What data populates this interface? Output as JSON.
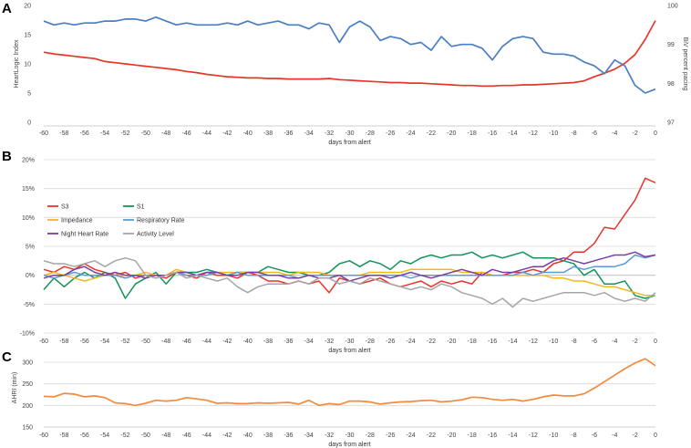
{
  "chart_data": [
    {
      "type": "line",
      "panel": "A",
      "x": [
        -60,
        -59,
        -58,
        -57,
        -56,
        -55,
        -54,
        -53,
        -52,
        -51,
        -50,
        -49,
        -48,
        -47,
        -46,
        -45,
        -44,
        -43,
        -42,
        -41,
        -40,
        -39,
        -38,
        -37,
        -36,
        -35,
        -34,
        -33,
        -32,
        -31,
        -30,
        -29,
        -28,
        -27,
        -26,
        -25,
        -24,
        -23,
        -22,
        -21,
        -20,
        -19,
        -18,
        -17,
        -16,
        -15,
        -14,
        -13,
        -12,
        -11,
        -10,
        -9,
        -8,
        -7,
        -6,
        -5,
        -4,
        -3,
        -2,
        -1,
        0
      ],
      "xticks": [
        -60,
        -58,
        -56,
        -54,
        -52,
        -50,
        -48,
        -46,
        -44,
        -42,
        -40,
        -38,
        -36,
        -34,
        -32,
        -30,
        -28,
        -26,
        -24,
        -22,
        -20,
        -18,
        -16,
        -14,
        -12,
        -10,
        -8,
        -6,
        -4,
        -2,
        0
      ],
      "xlabel": "days from alert",
      "ylabel_left": "HeartLogic Index",
      "ylabel_right": "BiV percent pacing",
      "ylim_left": [
        0,
        20
      ],
      "yticks_left": [
        "0",
        "5",
        "10",
        "15",
        "20"
      ],
      "ylim_right": [
        97,
        100
      ],
      "yticks_right": [
        "97",
        "98",
        "99",
        "100"
      ],
      "series": [
        {
          "name": "HeartLogic Index",
          "axis": "left",
          "color": "#e8352b",
          "values": [
            12.0,
            11.7,
            11.5,
            11.3,
            11.1,
            10.9,
            10.4,
            10.2,
            10.0,
            9.8,
            9.6,
            9.4,
            9.2,
            9.0,
            8.7,
            8.5,
            8.2,
            8.0,
            7.8,
            7.7,
            7.6,
            7.6,
            7.5,
            7.5,
            7.4,
            7.4,
            7.4,
            7.4,
            7.5,
            7.3,
            7.2,
            7.1,
            7.0,
            6.9,
            6.8,
            6.8,
            6.7,
            6.7,
            6.6,
            6.5,
            6.4,
            6.3,
            6.3,
            6.2,
            6.2,
            6.3,
            6.3,
            6.4,
            6.4,
            6.5,
            6.6,
            6.7,
            6.8,
            7.1,
            7.8,
            8.4,
            9.1,
            10.1,
            11.6,
            14.2,
            17.4
          ]
        },
        {
          "name": "BiV percent pacing",
          "axis": "right",
          "color": "#4a7ec4",
          "values": [
            99.6,
            99.5,
            99.55,
            99.5,
            99.55,
            99.55,
            99.6,
            99.6,
            99.65,
            99.65,
            99.6,
            99.7,
            99.6,
            99.5,
            99.55,
            99.5,
            99.5,
            99.5,
            99.55,
            99.5,
            99.6,
            99.5,
            99.55,
            99.6,
            99.5,
            99.5,
            99.4,
            99.55,
            99.5,
            99.05,
            99.45,
            99.6,
            99.45,
            99.1,
            99.2,
            99.15,
            99.0,
            99.05,
            98.85,
            99.2,
            98.95,
            99.0,
            99.0,
            98.9,
            98.6,
            98.95,
            99.15,
            99.2,
            99.15,
            98.8,
            98.75,
            98.75,
            98.7,
            98.55,
            98.45,
            98.25,
            98.6,
            98.45,
            97.95,
            97.75,
            97.85
          ]
        }
      ]
    },
    {
      "type": "line",
      "panel": "B",
      "x": [
        -60,
        -59,
        -58,
        -57,
        -56,
        -55,
        -54,
        -53,
        -52,
        -51,
        -50,
        -49,
        -48,
        -47,
        -46,
        -45,
        -44,
        -43,
        -42,
        -41,
        -40,
        -39,
        -38,
        -37,
        -36,
        -35,
        -34,
        -33,
        -32,
        -31,
        -30,
        -29,
        -28,
        -27,
        -26,
        -25,
        -24,
        -23,
        -22,
        -21,
        -20,
        -19,
        -18,
        -17,
        -16,
        -15,
        -14,
        -13,
        -12,
        -11,
        -10,
        -9,
        -8,
        -7,
        -6,
        -5,
        -4,
        -3,
        -2,
        -1,
        0
      ],
      "xticks": [
        -60,
        -58,
        -56,
        -54,
        -52,
        -50,
        -48,
        -46,
        -44,
        -42,
        -40,
        -38,
        -36,
        -34,
        -32,
        -30,
        -28,
        -26,
        -24,
        -22,
        -20,
        -18,
        -16,
        -14,
        -12,
        -10,
        -8,
        -6,
        -4,
        -2,
        0
      ],
      "xlabel": "days from alert",
      "ylim": [
        -10,
        20
      ],
      "yticks": [
        "-10%",
        "-5%",
        "0%",
        "5%",
        "10%",
        "15%",
        "20%"
      ],
      "legend": [
        {
          "name": "S3",
          "color": "#e8352b"
        },
        {
          "name": "S1",
          "color": "#14945a"
        },
        {
          "name": "Impedance",
          "color": "#f4b81c"
        },
        {
          "name": "Respiratory Rate",
          "color": "#5b9bd5"
        },
        {
          "name": "Night Heart Rate",
          "color": "#7b3fa0"
        },
        {
          "name": "Activity Level",
          "color": "#a6a6a6"
        }
      ],
      "series": [
        {
          "name": "S3",
          "color": "#e8352b",
          "values": [
            1.0,
            0.5,
            1.5,
            1.0,
            2.0,
            1.0,
            0.5,
            0.0,
            0.5,
            -0.5,
            0.0,
            0.0,
            -0.5,
            0.5,
            0.0,
            -0.5,
            0.5,
            0.0,
            0.0,
            -0.5,
            0.5,
            0.0,
            -1.0,
            -1.0,
            -1.5,
            -1.0,
            -1.5,
            -1.0,
            -3.0,
            -0.5,
            -1.0,
            -1.5,
            -1.0,
            -0.5,
            -1.5,
            -2.0,
            -1.5,
            -1.0,
            -2.0,
            -1.0,
            -1.5,
            -1.0,
            -1.5,
            0.5,
            0.0,
            0.0,
            0.5,
            0.5,
            1.0,
            0.5,
            2.0,
            2.5,
            4.0,
            4.0,
            5.5,
            8.3,
            8.0,
            10.5,
            13.0,
            16.8,
            16.0
          ]
        },
        {
          "name": "S1",
          "color": "#14945a",
          "values": [
            -2.5,
            -0.5,
            -2.0,
            -0.5,
            0.5,
            -0.5,
            0.5,
            -0.5,
            -4.0,
            -1.5,
            -0.5,
            0.5,
            -1.5,
            0.5,
            0.5,
            0.5,
            1.0,
            0.5,
            0.0,
            0.5,
            0.5,
            0.5,
            1.5,
            1.0,
            0.5,
            0.5,
            0.0,
            0.0,
            0.5,
            2.0,
            2.5,
            1.5,
            2.5,
            2.0,
            1.0,
            2.5,
            2.0,
            3.0,
            3.5,
            3.0,
            3.5,
            3.5,
            4.0,
            3.0,
            3.5,
            3.0,
            3.5,
            4.0,
            3.0,
            3.0,
            3.0,
            2.5,
            2.0,
            0.0,
            1.0,
            -1.5,
            -1.5,
            -1.0,
            -3.5,
            -4.0,
            -3.5
          ]
        },
        {
          "name": "Impedance",
          "color": "#f4b81c",
          "values": [
            0.0,
            0.5,
            0.0,
            -0.5,
            -1.0,
            -0.5,
            0.0,
            0.5,
            -0.5,
            0.0,
            0.5,
            0.0,
            0.0,
            1.0,
            0.5,
            0.0,
            0.5,
            0.5,
            0.5,
            0.5,
            0.5,
            0.5,
            0.5,
            0.5,
            0.0,
            0.5,
            0.5,
            0.5,
            0.0,
            0.0,
            0.0,
            0.0,
            0.5,
            0.5,
            0.5,
            0.5,
            1.0,
            1.0,
            1.0,
            1.0,
            1.0,
            0.5,
            0.5,
            0.5,
            0.0,
            0.0,
            0.0,
            0.0,
            0.0,
            0.0,
            -0.5,
            -0.5,
            -1.0,
            -1.0,
            -1.5,
            -2.0,
            -2.0,
            -2.5,
            -3.0,
            -3.5,
            -3.5
          ]
        },
        {
          "name": "Respiratory Rate",
          "color": "#5b9bd5",
          "values": [
            0.0,
            -0.5,
            0.0,
            0.5,
            0.0,
            0.0,
            0.0,
            0.0,
            -0.5,
            0.0,
            0.0,
            -0.5,
            0.0,
            0.5,
            0.0,
            0.0,
            0.0,
            0.5,
            0.0,
            0.5,
            0.0,
            0.0,
            0.0,
            0.0,
            0.0,
            -0.5,
            0.0,
            0.0,
            0.0,
            0.0,
            0.0,
            0.0,
            0.0,
            0.0,
            0.0,
            0.0,
            -0.5,
            0.0,
            0.0,
            0.0,
            0.0,
            0.0,
            0.0,
            0.0,
            0.0,
            0.0,
            0.0,
            0.5,
            0.0,
            0.5,
            0.5,
            0.5,
            1.5,
            1.0,
            1.5,
            1.5,
            1.5,
            2.0,
            3.5,
            3.0,
            3.5
          ]
        },
        {
          "name": "Night Heart Rate",
          "color": "#7b3fa0",
          "values": [
            -0.5,
            0.0,
            0.0,
            1.0,
            1.5,
            0.5,
            0.0,
            0.5,
            0.0,
            0.0,
            -0.5,
            0.0,
            0.0,
            0.5,
            0.5,
            0.0,
            0.5,
            0.5,
            0.0,
            0.0,
            0.5,
            0.5,
            0.0,
            0.0,
            -0.5,
            -0.5,
            0.0,
            -0.5,
            -0.5,
            0.0,
            -1.0,
            -0.5,
            0.0,
            0.0,
            -0.5,
            0.0,
            0.5,
            0.0,
            -0.5,
            0.0,
            0.5,
            1.0,
            0.5,
            0.0,
            1.0,
            0.5,
            0.5,
            1.0,
            1.5,
            1.5,
            2.5,
            3.0,
            2.5,
            2.0,
            2.5,
            3.0,
            3.5,
            3.5,
            4.0,
            3.2,
            3.5
          ]
        },
        {
          "name": "Activity Level",
          "color": "#a6a6a6",
          "values": [
            2.5,
            2.0,
            2.0,
            1.5,
            2.0,
            2.5,
            1.5,
            2.5,
            3.0,
            2.5,
            0.0,
            -0.5,
            0.0,
            0.5,
            -0.5,
            0.0,
            -0.5,
            -1.0,
            -0.5,
            -2.0,
            -3.0,
            -2.0,
            -1.5,
            -1.5,
            -1.5,
            -1.0,
            -1.5,
            -0.5,
            -0.5,
            -1.5,
            -1.0,
            -1.5,
            -0.5,
            -1.0,
            -1.5,
            -2.0,
            -2.5,
            -2.0,
            -2.5,
            -1.5,
            -2.0,
            -3.0,
            -3.5,
            -4.0,
            -5.0,
            -4.0,
            -5.5,
            -4.0,
            -4.5,
            -4.0,
            -3.5,
            -3.0,
            -3.0,
            -3.0,
            -3.5,
            -3.0,
            -4.0,
            -4.5,
            -4.0,
            -4.5,
            -3.0
          ]
        }
      ]
    },
    {
      "type": "line",
      "panel": "C",
      "x": [
        -60,
        -59,
        -58,
        -57,
        -56,
        -55,
        -54,
        -53,
        -52,
        -51,
        -50,
        -49,
        -48,
        -47,
        -46,
        -45,
        -44,
        -43,
        -42,
        -41,
        -40,
        -39,
        -38,
        -37,
        -36,
        -35,
        -34,
        -33,
        -32,
        -31,
        -30,
        -29,
        -28,
        -27,
        -26,
        -25,
        -24,
        -23,
        -22,
        -21,
        -20,
        -19,
        -18,
        -17,
        -16,
        -15,
        -14,
        -13,
        -12,
        -11,
        -10,
        -9,
        -8,
        -7,
        -6,
        -5,
        -4,
        -3,
        -2,
        -1,
        0
      ],
      "xticks": [
        -60,
        -58,
        -56,
        -54,
        -52,
        -50,
        -48,
        -46,
        -44,
        -42,
        -40,
        -38,
        -36,
        -34,
        -32,
        -30,
        -28,
        -26,
        -24,
        -22,
        -20,
        -18,
        -16,
        -14,
        -12,
        -10,
        -8,
        -6,
        -4,
        -2,
        0
      ],
      "xlabel": "days from alert",
      "ylabel": "AHRI (min)",
      "ylim": [
        150,
        300
      ],
      "yticks": [
        "150",
        "200",
        "250",
        "300"
      ],
      "series": [
        {
          "name": "AHRI",
          "color": "#f58a3c",
          "values": [
            221,
            220,
            228,
            226,
            220,
            222,
            218,
            206,
            204,
            200,
            205,
            212,
            210,
            212,
            218,
            215,
            212,
            205,
            206,
            204,
            204,
            206,
            205,
            206,
            207,
            203,
            212,
            200,
            204,
            202,
            210,
            210,
            208,
            203,
            206,
            208,
            209,
            211,
            212,
            208,
            210,
            213,
            219,
            218,
            214,
            212,
            214,
            210,
            214,
            220,
            224,
            222,
            222,
            227,
            240,
            255,
            270,
            285,
            298,
            308,
            292
          ]
        }
      ]
    }
  ],
  "panels": {
    "a": "A",
    "b": "B",
    "c": "C"
  }
}
